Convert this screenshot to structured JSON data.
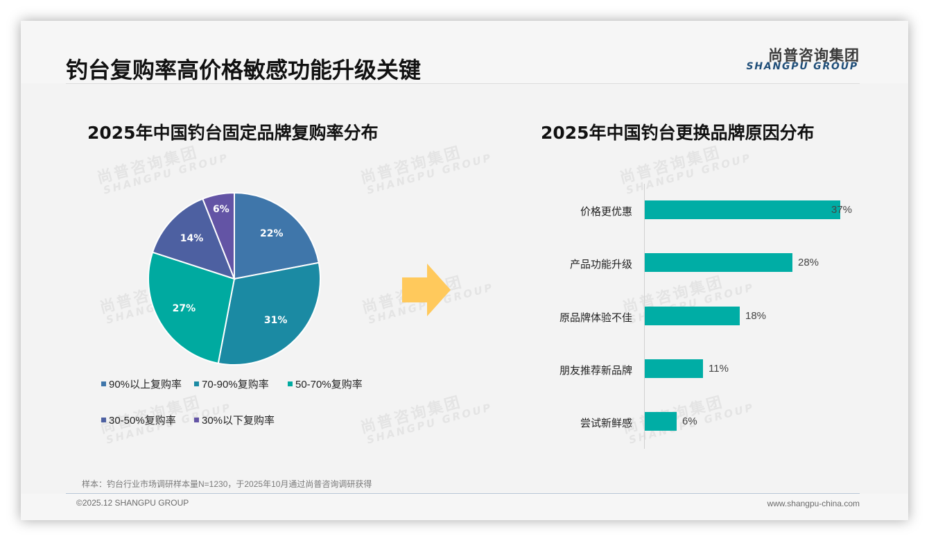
{
  "page": {
    "title": "钓台复购率高价格敏感功能升级关键",
    "logo": {
      "cn": "尚普咨询集团",
      "en": "SHANGPU GROUP"
    },
    "watermark": {
      "cn": "尚普咨询集团",
      "en": "SHANGPU GROUP"
    },
    "note": "样本：钓台行业市场调研样本量N=1230，于2025年10月通过尚普咨询调研获得",
    "footer": {
      "copyright": "©2025.12 SHANGPU GROUP",
      "website": "www.shangpu-china.com"
    },
    "arrow_icon": "right-arrow",
    "colors": {
      "arrow": "#ffc95c",
      "bar": "#00ada5",
      "background": "#f3f3f3"
    }
  },
  "chart_data": [
    {
      "type": "pie",
      "title": "2025年中国钓台固定品牌复购率分布",
      "categories": [
        "90%以上复购率",
        "70-90%复购率",
        "50-70%复购率",
        "30-50%复购率",
        "30%以下复购率"
      ],
      "values": [
        22,
        31,
        27,
        14,
        6
      ],
      "labels": [
        "22%",
        "31%",
        "27%",
        "14%",
        "6%"
      ],
      "colors": [
        "#3f76aa",
        "#1b8aa3",
        "#00aaa0",
        "#4d60a1",
        "#6354a5"
      ],
      "legend_position": "bottom",
      "start_angle": 0,
      "direction": "clockwise"
    },
    {
      "type": "bar",
      "orientation": "horizontal",
      "title": "2025年中国钓台更换品牌原因分布",
      "categories": [
        "价格更优惠",
        "产品功能升级",
        "原品牌体验不佳",
        "朋友推荐新品牌",
        "尝试新鲜感"
      ],
      "values": [
        37,
        28,
        18,
        11,
        6
      ],
      "labels": [
        "37%",
        "28%",
        "18%",
        "11%",
        "6%"
      ],
      "xlabel": "",
      "ylabel": "",
      "grid": false,
      "color": "#00ada5"
    }
  ]
}
